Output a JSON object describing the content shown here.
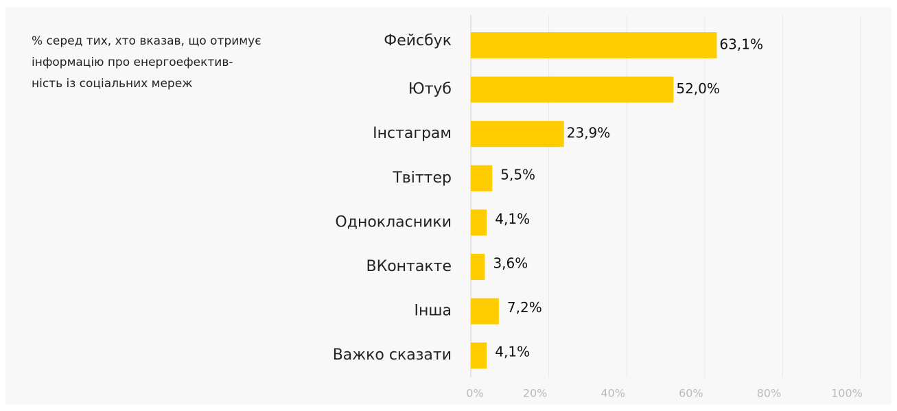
{
  "chart_data": {
    "type": "barh",
    "subtitle_lines": [
      "% серед тих, хто вказав, що отримує",
      "інформацію про енергоефектив-",
      "ність із соціальних мереж"
    ],
    "categories": [
      "Фейсбук",
      "Ютуб",
      "Інстаграм",
      "Твіттер",
      "Однокласники",
      "ВКонтакте",
      "Інша",
      "Важко сказати"
    ],
    "values": [
      63.1,
      52.0,
      23.9,
      5.5,
      4.1,
      3.6,
      7.2,
      4.1
    ],
    "value_labels": [
      "63,1%",
      "52,0%",
      "23,9%",
      "5,5%",
      "4,1%",
      "3,6%",
      "7,2%",
      "4,1%"
    ],
    "color": "#ffcc00",
    "xlim": [
      0,
      100
    ],
    "xticks": [
      {
        "value": 0,
        "label": "0%"
      },
      {
        "value": 20,
        "label": "20%"
      },
      {
        "value": 40,
        "label": "40%"
      },
      {
        "value": 60,
        "label": "60%"
      },
      {
        "value": 80,
        "label": "80%"
      },
      {
        "value": 100,
        "label": "100%"
      }
    ],
    "grid": true
  }
}
